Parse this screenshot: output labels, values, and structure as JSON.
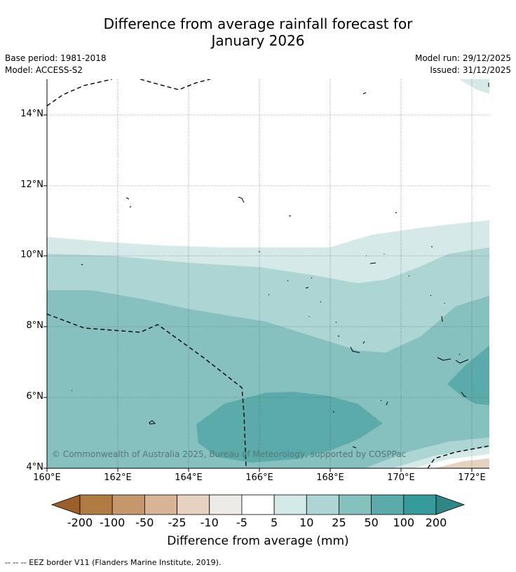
{
  "title_line1": "Difference from average rainfall forecast for",
  "title_line2": "January 2026",
  "base_period": "Base period: 1981-2018",
  "model": "Model: ACCESS-S2",
  "model_run": "Model run: 29/12/2025",
  "issued": "Issued: 31/12/2025",
  "lat_labels": [
    "14°N",
    "12°N",
    "10°N",
    "8°N",
    "6°N",
    "4°N"
  ],
  "lon_labels": [
    "160°E",
    "162°E",
    "164°E",
    "166°E",
    "168°E",
    "170°E",
    "172°E"
  ],
  "copyright": "© Commonwealth of Australia 2025, Bureau of Meteorology, supported by COSPPac",
  "colorbar": {
    "labels": [
      "-200",
      "-100",
      "-50",
      "-25",
      "-10",
      "-5",
      "5",
      "10",
      "25",
      "50",
      "100",
      "200"
    ],
    "colors": [
      "#9a5f2b",
      "#b07a43",
      "#c4986c",
      "#d6b494",
      "#e5d2c0",
      "#eeeae6",
      "#ffffff",
      "#d5eae8",
      "#acd5d4",
      "#86c0bf",
      "#5babab",
      "#359b9b",
      "#2e8785"
    ],
    "title": "Difference from average (mm)"
  },
  "footer": "--  --  -- EEZ border V11 (Flanders Marine Institute, 2019)."
}
